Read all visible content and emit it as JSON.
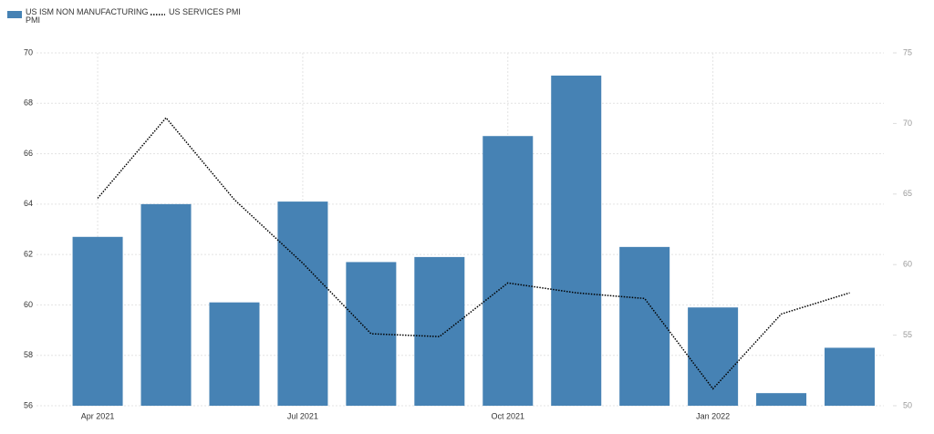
{
  "chart_data": {
    "type": "bar_line",
    "categories": [
      "Apr 2021",
      null,
      null,
      "Jul 2021",
      null,
      null,
      "Oct 2021",
      null,
      null,
      "Jan 2022",
      null,
      null
    ],
    "series": [
      {
        "name": "US ISM NON MANUFACTURING PMI",
        "type": "bar",
        "color": "#4682b4",
        "values": [
          62.7,
          64.0,
          60.1,
          64.1,
          61.7,
          61.9,
          66.7,
          69.1,
          62.3,
          59.9,
          56.5,
          58.3
        ]
      },
      {
        "name": "US SERVICES PMI",
        "type": "line",
        "axis": "y2",
        "color": "#000000",
        "values": [
          64.7,
          70.4,
          64.6,
          60.1,
          55.1,
          54.9,
          58.7,
          58.0,
          57.6,
          51.2,
          56.5,
          58.0
        ]
      }
    ],
    "ylim": [
      56,
      70
    ],
    "yticks": [
      56,
      58,
      60,
      62,
      64,
      66,
      68,
      70
    ],
    "y2lim": [
      50,
      75
    ],
    "y2ticks": [
      50,
      55,
      60,
      65,
      70,
      75
    ],
    "grid": true,
    "legend": "top-left"
  }
}
